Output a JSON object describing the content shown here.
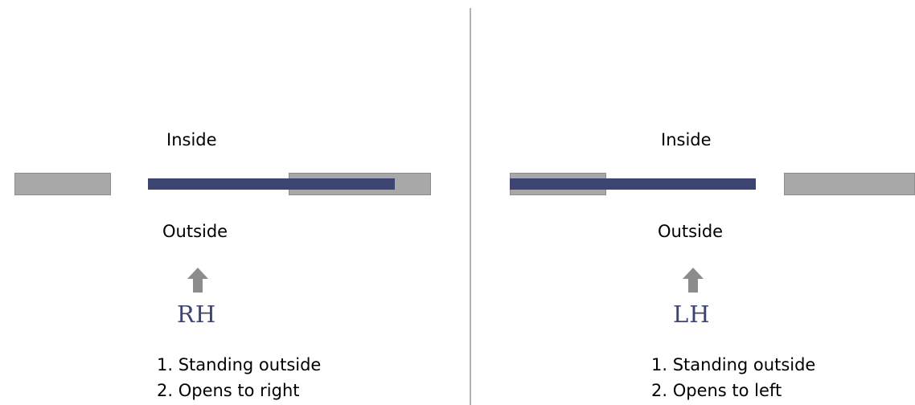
{
  "colors": {
    "wall": "#a8a8a8",
    "door": "#3d4471",
    "arrow": "#8c8c8c",
    "divider": "#b3b3b3",
    "code_text": "#3d4471"
  },
  "icons": {
    "arrow": "arrow-up-icon"
  },
  "left": {
    "inside_label": "Inside",
    "outside_label": "Outside",
    "code": "RH",
    "steps": [
      "1. Standing outside",
      "2. Opens to right"
    ]
  },
  "right": {
    "inside_label": "Inside",
    "outside_label": "Outside",
    "code": "LH",
    "steps": [
      "1. Standing outside",
      "2. Opens to left"
    ]
  }
}
